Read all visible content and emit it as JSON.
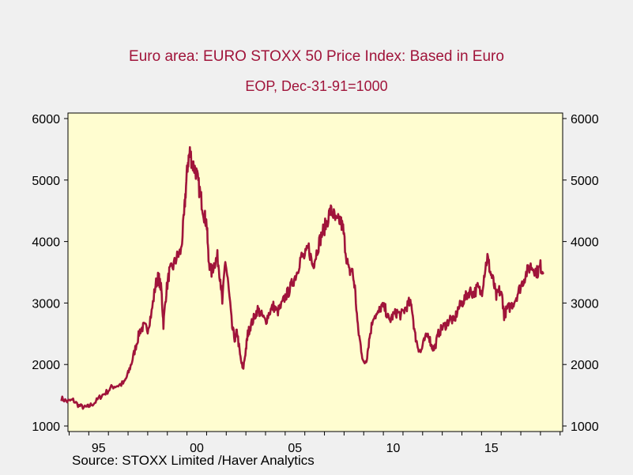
{
  "chart_data": {
    "type": "line",
    "title": "Euro area: EURO STOXX 50 Price Index: Based in Euro",
    "subtitle": "EOP, Dec-31-91=1000",
    "source": "Source:  STOXX Limited /Haver Analytics",
    "xlabel": "",
    "ylabel": "",
    "ylim": [
      1000,
      6000
    ],
    "xlim": [
      1993.5,
      2018.5
    ],
    "y_ticks": [
      "1000",
      "2000",
      "3000",
      "4000",
      "5000",
      "6000"
    ],
    "x_tick_labels": [
      {
        "label": "95",
        "x": 1995
      },
      {
        "label": "00",
        "x": 2000
      },
      {
        "label": "05",
        "x": 2005
      },
      {
        "label": "10",
        "x": 2010
      },
      {
        "label": "15",
        "x": 2015
      }
    ],
    "grid": false,
    "series": [
      {
        "name": "EURO STOXX 50",
        "color": "#a0143a",
        "x": [
          1993.6,
          1993.9,
          1994.2,
          1994.5,
          1994.8,
          1995.0,
          1995.3,
          1995.6,
          1995.9,
          1996.2,
          1996.5,
          1996.8,
          1997.0,
          1997.2,
          1997.4,
          1997.6,
          1997.8,
          1998.0,
          1998.2,
          1998.4,
          1998.55,
          1998.7,
          1998.8,
          1998.95,
          1999.1,
          1999.3,
          1999.5,
          1999.7,
          1999.85,
          1999.95,
          2000.05,
          2000.15,
          2000.3,
          2000.45,
          2000.6,
          2000.75,
          2000.9,
          2001.0,
          2001.1,
          2001.25,
          2001.4,
          2001.55,
          2001.7,
          2001.8,
          2001.95,
          2002.1,
          2002.3,
          2002.45,
          2002.55,
          2002.7,
          2002.85,
          2003.0,
          2003.1,
          2003.2,
          2003.4,
          2003.6,
          2003.8,
          2004.0,
          2004.2,
          2004.4,
          2004.6,
          2004.8,
          2005.0,
          2005.2,
          2005.4,
          2005.6,
          2005.8,
          2006.0,
          2006.2,
          2006.4,
          2006.5,
          2006.7,
          2006.9,
          2007.1,
          2007.3,
          2007.45,
          2007.6,
          2007.8,
          2007.95,
          2008.1,
          2008.25,
          2008.4,
          2008.55,
          2008.7,
          2008.85,
          2009.0,
          2009.15,
          2009.3,
          2009.5,
          2009.7,
          2009.9,
          2010.1,
          2010.3,
          2010.5,
          2010.7,
          2010.9,
          2011.1,
          2011.3,
          2011.45,
          2011.6,
          2011.75,
          2011.9,
          2012.1,
          2012.3,
          2012.45,
          2012.6,
          2012.8,
          2013.0,
          2013.2,
          2013.4,
          2013.6,
          2013.8,
          2014.0,
          2014.2,
          2014.4,
          2014.6,
          2014.8,
          2015.0,
          2015.15,
          2015.3,
          2015.45,
          2015.6,
          2015.75,
          2015.9,
          2016.05,
          2016.15,
          2016.3,
          2016.5,
          2016.7,
          2016.9,
          2017.1,
          2017.3,
          2017.5,
          2017.7,
          2017.85,
          2018.0,
          2018.15
        ],
        "values": [
          1450,
          1400,
          1420,
          1330,
          1300,
          1320,
          1380,
          1480,
          1550,
          1640,
          1660,
          1700,
          1850,
          2050,
          2300,
          2550,
          2620,
          2580,
          2850,
          3300,
          3430,
          3200,
          2650,
          3200,
          3500,
          3600,
          3750,
          3850,
          4400,
          4900,
          5300,
          5450,
          5250,
          5150,
          4900,
          4650,
          4400,
          4300,
          3700,
          3500,
          3650,
          3750,
          3400,
          3000,
          3700,
          3300,
          2600,
          2400,
          2550,
          2150,
          1900,
          2250,
          2500,
          2600,
          2750,
          2900,
          2800,
          2700,
          2850,
          2950,
          2850,
          2950,
          3100,
          3200,
          3350,
          3500,
          3750,
          3750,
          3900,
          3600,
          3700,
          3950,
          4150,
          4300,
          4500,
          4450,
          4300,
          4350,
          4200,
          3800,
          3500,
          3550,
          3250,
          2600,
          2300,
          2000,
          2100,
          2450,
          2800,
          2800,
          2950,
          2900,
          2700,
          2800,
          2850,
          2800,
          2900,
          3000,
          2950,
          2500,
          2300,
          2200,
          2400,
          2500,
          2300,
          2250,
          2500,
          2600,
          2650,
          2750,
          2700,
          2900,
          3000,
          3100,
          3200,
          3150,
          3250,
          3150,
          3500,
          3750,
          3500,
          3350,
          3100,
          3200,
          3100,
          2800,
          2900,
          2950,
          3050,
          3200,
          3350,
          3500,
          3600,
          3550,
          3500,
          3600,
          3500
        ]
      }
    ]
  }
}
